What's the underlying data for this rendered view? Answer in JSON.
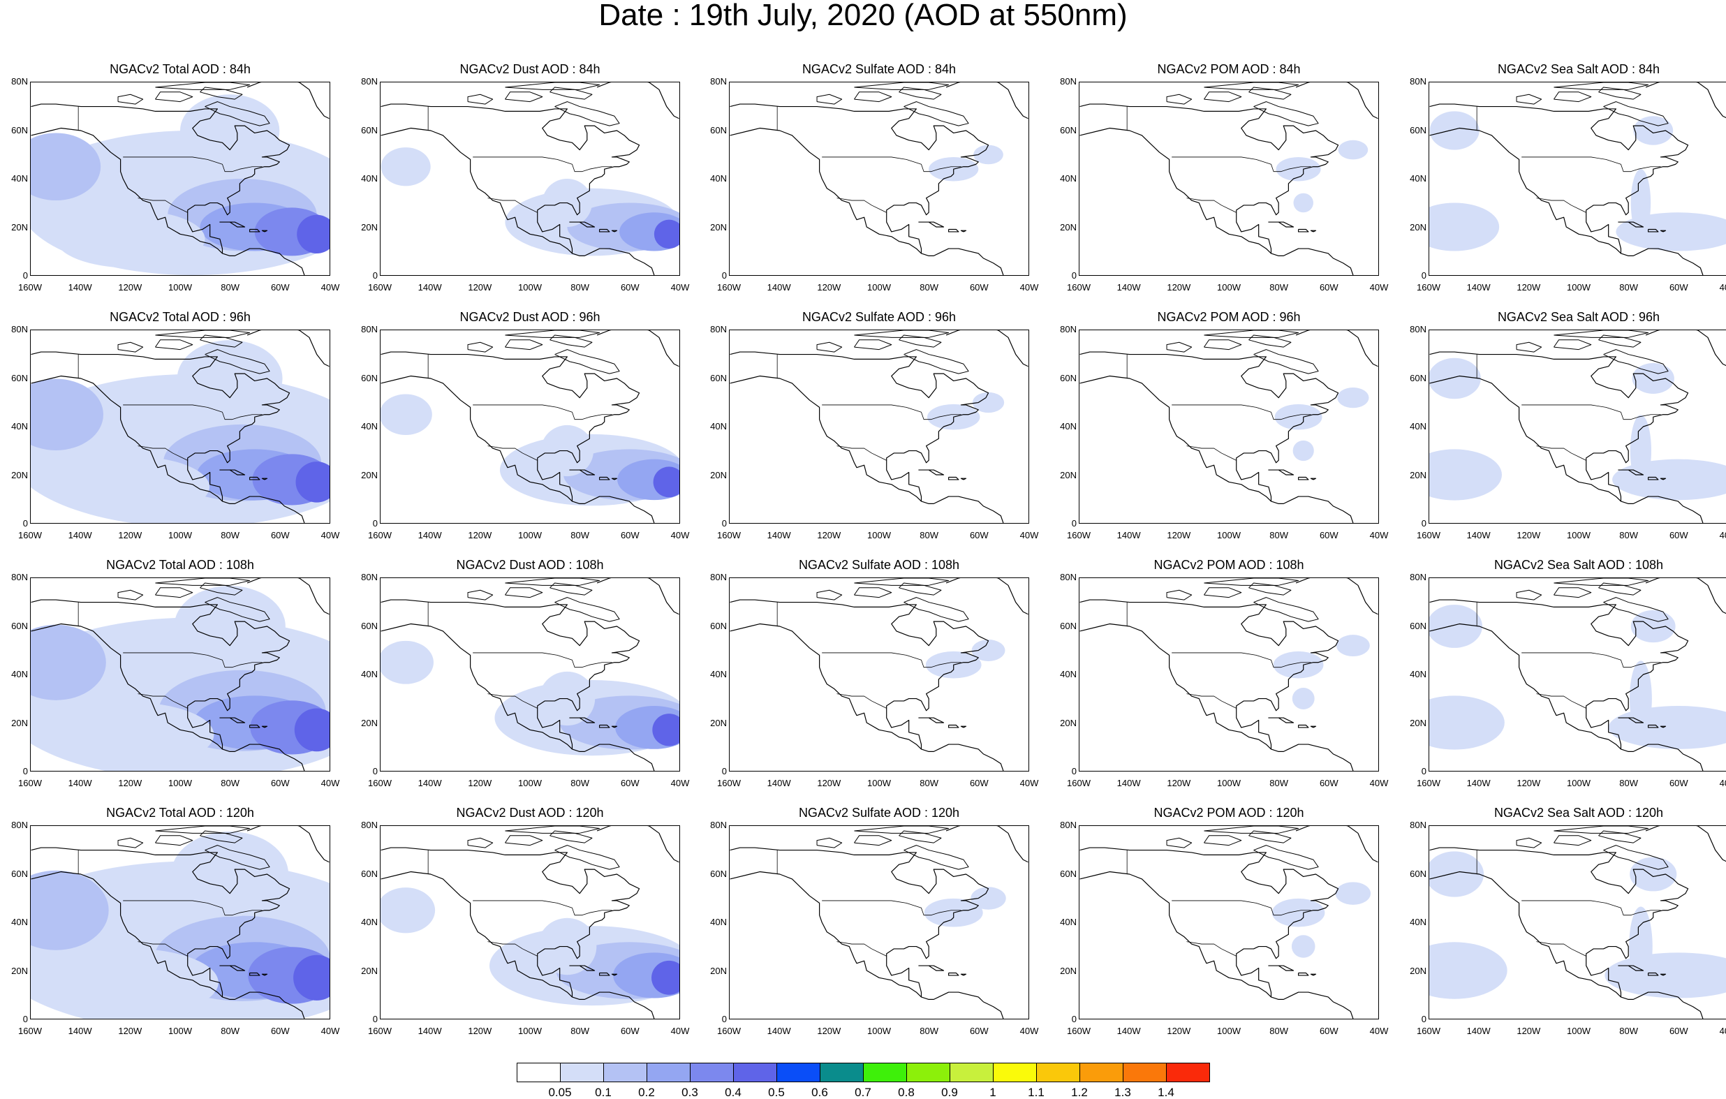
{
  "title": "Date : 19th July, 2020 (AOD at 550nm)",
  "species": [
    {
      "key": "total",
      "label": "NGACv2 Total AOD"
    },
    {
      "key": "dust",
      "label": "NGACv2 Dust AOD"
    },
    {
      "key": "sulfate",
      "label": "NGACv2 Sulfate AOD"
    },
    {
      "key": "pom",
      "label": "NGACv2 POM AOD"
    },
    {
      "key": "seasalt",
      "label": "NGACv2 Sea Salt AOD"
    }
  ],
  "panel_titles": [
    [
      "NGACv2 Total AOD : 84h",
      "NGACv2 Dust AOD : 84h",
      "NGACv2 Sulfate AOD : 84h",
      "NGACv2 POM AOD : 84h",
      "NGACv2 Sea Salt AOD : 84h"
    ],
    [
      "NGACv2 Total AOD : 96h",
      "NGACv2 Dust AOD : 96h",
      "NGACv2 Sulfate AOD : 96h",
      "NGACv2 POM AOD : 96h",
      "NGACv2 Sea Salt AOD : 96h"
    ],
    [
      "NGACv2 Total AOD : 108h",
      "NGACv2 Dust AOD : 108h",
      "NGACv2 Sulfate AOD : 108h",
      "NGACv2 POM AOD : 108h",
      "NGACv2 Sea Salt  AOD : 108h"
    ],
    [
      "NGACv2 Total AOD : 120h",
      "NGACv2 Dust AOD : 120h",
      "NGACv2 Sulfate AOD : 120h",
      "NGACv2 POM AOD : 120h",
      "NGACv2 Sea Salt  AOD : 120h"
    ]
  ],
  "forecast_hours": [
    "84h",
    "96h",
    "108h",
    "120h"
  ],
  "map": {
    "lon_range": [
      -160,
      -40
    ],
    "lat_range": [
      0,
      80
    ],
    "x_ticks": [
      "160W",
      "140W",
      "120W",
      "100W",
      "80W",
      "60W",
      "40W"
    ],
    "y_ticks": [
      "80N",
      "60N",
      "40N",
      "20N",
      "0"
    ],
    "land_outline_color": "#000000"
  },
  "colorbar": {
    "labels": [
      "0.05",
      "0.1",
      "0.2",
      "0.3",
      "0.4",
      "0.5",
      "0.6",
      "0.7",
      "0.8",
      "0.9",
      "1",
      "1.1",
      "1.2",
      "1.3",
      "1.4"
    ],
    "colors": [
      "#ffffff",
      "#d4def8",
      "#b4c2f4",
      "#94a6f2",
      "#7c88ee",
      "#5f64e8",
      "#0a4ef8",
      "#0a8c8c",
      "#3ef00a",
      "#8cf00a",
      "#c8f03c",
      "#fafa0a",
      "#fac80a",
      "#fa9c0a",
      "#fa780a",
      "#fa2a0a"
    ]
  }
}
